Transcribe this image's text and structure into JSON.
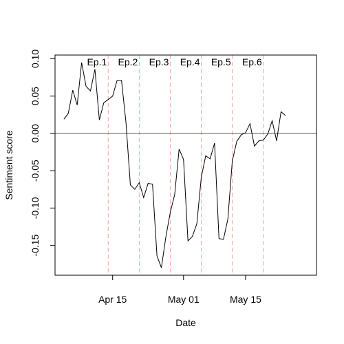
{
  "chart_data": {
    "type": "line",
    "title": "",
    "xlabel": "Date",
    "ylabel": "Sentiment score",
    "x_ticks": [
      {
        "date": "2017-04-15",
        "label": "Apr 15"
      },
      {
        "date": "2017-05-01",
        "label": "May 01"
      },
      {
        "date": "2017-05-15",
        "label": "May 15"
      }
    ],
    "y_ticks": [
      {
        "value": -0.15,
        "label": "-0.15"
      },
      {
        "value": -0.1,
        "label": "-0.10"
      },
      {
        "value": -0.05,
        "label": "-0.05"
      },
      {
        "value": 0.0,
        "label": "0.00"
      },
      {
        "value": 0.05,
        "label": "0.05"
      },
      {
        "value": 0.1,
        "label": "0.10"
      }
    ],
    "xlim": [
      "2017-04-02",
      "2017-05-31"
    ],
    "ylim": [
      -0.19,
      0.105
    ],
    "reference_line_y": 0,
    "episode_markers": [
      {
        "label": "Ep.1",
        "date": "2017-04-14"
      },
      {
        "label": "Ep.2",
        "date": "2017-04-21"
      },
      {
        "label": "Ep.3",
        "date": "2017-04-28"
      },
      {
        "label": "Ep.4",
        "date": "2017-05-05"
      },
      {
        "label": "Ep.5",
        "date": "2017-05-12"
      },
      {
        "label": "Ep.6",
        "date": "2017-05-19"
      }
    ],
    "colors": {
      "line": "#000000",
      "episode_marker": "#f4a6a0",
      "reference_line": "#555555"
    },
    "series": [
      {
        "points": [
          [
            "2017-04-04",
            0.019
          ],
          [
            "2017-04-05",
            0.027
          ],
          [
            "2017-04-06",
            0.058
          ],
          [
            "2017-04-07",
            0.038
          ],
          [
            "2017-04-08",
            0.095
          ],
          [
            "2017-04-09",
            0.063
          ],
          [
            "2017-04-10",
            0.057
          ],
          [
            "2017-04-11",
            0.086
          ],
          [
            "2017-04-12",
            0.018
          ],
          [
            "2017-04-13",
            0.041
          ],
          [
            "2017-04-15",
            0.05
          ],
          [
            "2017-04-16",
            0.071
          ],
          [
            "2017-04-17",
            0.071
          ],
          [
            "2017-04-18",
            0.015
          ],
          [
            "2017-04-19",
            -0.069
          ],
          [
            "2017-04-20",
            -0.075
          ],
          [
            "2017-04-21",
            -0.066
          ],
          [
            "2017-04-22",
            -0.086
          ],
          [
            "2017-04-23",
            -0.067
          ],
          [
            "2017-04-24",
            -0.068
          ],
          [
            "2017-04-25",
            -0.164
          ],
          [
            "2017-04-26",
            -0.18
          ],
          [
            "2017-04-27",
            -0.139
          ],
          [
            "2017-04-28",
            -0.106
          ],
          [
            "2017-04-29",
            -0.082
          ],
          [
            "2017-04-30",
            -0.021
          ],
          [
            "2017-05-01",
            -0.035
          ],
          [
            "2017-05-02",
            -0.144
          ],
          [
            "2017-05-03",
            -0.138
          ],
          [
            "2017-05-04",
            -0.121
          ],
          [
            "2017-05-05",
            -0.059
          ],
          [
            "2017-05-06",
            -0.03
          ],
          [
            "2017-05-07",
            -0.034
          ],
          [
            "2017-05-08",
            -0.013
          ],
          [
            "2017-05-09",
            -0.141
          ],
          [
            "2017-05-10",
            -0.142
          ],
          [
            "2017-05-11",
            -0.115
          ],
          [
            "2017-05-12",
            -0.037
          ],
          [
            "2017-05-13",
            -0.011
          ],
          [
            "2017-05-14",
            -0.002
          ],
          [
            "2017-05-15",
            0.001
          ],
          [
            "2017-05-16",
            0.013
          ],
          [
            "2017-05-17",
            -0.017
          ],
          [
            "2017-05-18",
            -0.01
          ],
          [
            "2017-05-19",
            -0.009
          ],
          [
            "2017-05-20",
            -0.001
          ],
          [
            "2017-05-21",
            0.017
          ],
          [
            "2017-05-22",
            -0.01
          ],
          [
            "2017-05-23",
            0.029
          ],
          [
            "2017-05-24",
            0.024
          ]
        ]
      }
    ]
  }
}
